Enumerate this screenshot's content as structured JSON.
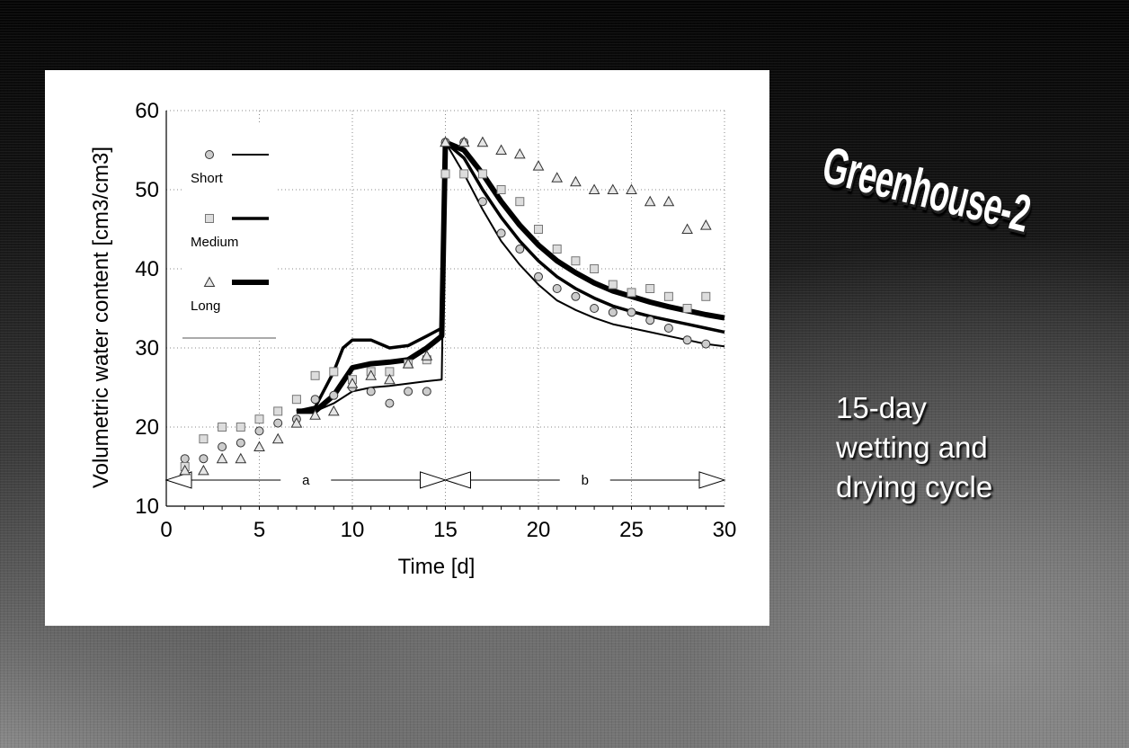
{
  "slide": {
    "title": "Greenhouse-2",
    "faded_text": "",
    "subtitle_lines": [
      "15-day",
      "wetting and",
      "drying cycle"
    ]
  },
  "chart_data": {
    "type": "scatter",
    "xlabel": "Time [d]",
    "ylabel": "Volumetric water content [cm3/cm3]",
    "xlim": [
      0,
      30
    ],
    "ylim": [
      10,
      60
    ],
    "xticks": [
      0,
      5,
      10,
      15,
      20,
      25,
      30
    ],
    "yticks": [
      10,
      20,
      30,
      40,
      50,
      60
    ],
    "grid": true,
    "legend_position": "top-left",
    "phase_labels": [
      {
        "label": "a",
        "from": 0,
        "to": 15
      },
      {
        "label": "b",
        "from": 15,
        "to": 30
      }
    ],
    "series": [
      {
        "name": "Short",
        "marker": "circle",
        "line_weight": "thin",
        "observed": [
          [
            1,
            16
          ],
          [
            2,
            16
          ],
          [
            3,
            17.5
          ],
          [
            4,
            18
          ],
          [
            5,
            19.5
          ],
          [
            6,
            20.5
          ],
          [
            7,
            21
          ],
          [
            8,
            23.5
          ],
          [
            9,
            24
          ],
          [
            10,
            25
          ],
          [
            11,
            24.5
          ],
          [
            12,
            23
          ],
          [
            13,
            24.5
          ],
          [
            14,
            24.5
          ],
          [
            15,
            56
          ],
          [
            16,
            56
          ],
          [
            17,
            48.5
          ],
          [
            18,
            44.5
          ],
          [
            19,
            42.5
          ],
          [
            20,
            39
          ],
          [
            21,
            37.5
          ],
          [
            22,
            36.5
          ],
          [
            23,
            35
          ],
          [
            24,
            34.5
          ],
          [
            25,
            34.5
          ],
          [
            26,
            33.5
          ],
          [
            27,
            32.5
          ],
          [
            28,
            31
          ],
          [
            29,
            30.5
          ]
        ],
        "modeled": [
          [
            7,
            22
          ],
          [
            8,
            22
          ],
          [
            9,
            23
          ],
          [
            10,
            24.5
          ],
          [
            11,
            25
          ],
          [
            12,
            25.2
          ],
          [
            13,
            25.5
          ],
          [
            14,
            25.8
          ],
          [
            14.8,
            26
          ],
          [
            15,
            56
          ],
          [
            16,
            52
          ],
          [
            17,
            47.5
          ],
          [
            18,
            43.5
          ],
          [
            19,
            40.5
          ],
          [
            20,
            38
          ],
          [
            21,
            36
          ],
          [
            22,
            34.8
          ],
          [
            23,
            33.8
          ],
          [
            24,
            33
          ],
          [
            25,
            32.5
          ],
          [
            26,
            32
          ],
          [
            27,
            31.5
          ],
          [
            28,
            31
          ],
          [
            29,
            30.5
          ],
          [
            30,
            30.2
          ]
        ]
      },
      {
        "name": "Medium",
        "marker": "square",
        "line_weight": "medium",
        "observed": [
          [
            1,
            15
          ],
          [
            2,
            18.5
          ],
          [
            3,
            20
          ],
          [
            4,
            20
          ],
          [
            5,
            21
          ],
          [
            6,
            22
          ],
          [
            7,
            23.5
          ],
          [
            8,
            26.5
          ],
          [
            9,
            27
          ],
          [
            10,
            26
          ],
          [
            11,
            27
          ],
          [
            12,
            27
          ],
          [
            13,
            28
          ],
          [
            14,
            28.5
          ],
          [
            15,
            52
          ],
          [
            16,
            52
          ],
          [
            17,
            52
          ],
          [
            18,
            50
          ],
          [
            19,
            48.5
          ],
          [
            20,
            45
          ],
          [
            21,
            42.5
          ],
          [
            22,
            41
          ],
          [
            23,
            40
          ],
          [
            24,
            38
          ],
          [
            25,
            37
          ],
          [
            26,
            37.5
          ],
          [
            27,
            36.5
          ],
          [
            28,
            35
          ],
          [
            29,
            36.5
          ]
        ],
        "modeled": [
          [
            7,
            22
          ],
          [
            8,
            22.5
          ],
          [
            9,
            27
          ],
          [
            9.5,
            30
          ],
          [
            10,
            31
          ],
          [
            11,
            31
          ],
          [
            12,
            30
          ],
          [
            13,
            30.3
          ],
          [
            14,
            31.5
          ],
          [
            14.8,
            32.5
          ],
          [
            15,
            56
          ],
          [
            16,
            54
          ],
          [
            17,
            50
          ],
          [
            18,
            46.5
          ],
          [
            19,
            43.5
          ],
          [
            20,
            41
          ],
          [
            21,
            39
          ],
          [
            22,
            37.5
          ],
          [
            23,
            36.3
          ],
          [
            24,
            35.3
          ],
          [
            25,
            34.6
          ],
          [
            26,
            34
          ],
          [
            27,
            33.5
          ],
          [
            28,
            33
          ],
          [
            29,
            32.5
          ],
          [
            30,
            32
          ]
        ]
      },
      {
        "name": "Long",
        "marker": "triangle",
        "line_weight": "thick",
        "observed": [
          [
            1,
            14.5
          ],
          [
            2,
            14.5
          ],
          [
            3,
            16
          ],
          [
            4,
            16
          ],
          [
            5,
            17.5
          ],
          [
            6,
            18.5
          ],
          [
            7,
            20.5
          ],
          [
            8,
            21.5
          ],
          [
            9,
            22
          ],
          [
            10,
            25.5
          ],
          [
            11,
            26.5
          ],
          [
            12,
            26
          ],
          [
            13,
            28
          ],
          [
            14,
            29
          ],
          [
            15,
            56
          ],
          [
            16,
            56
          ],
          [
            17,
            56
          ],
          [
            18,
            55
          ],
          [
            19,
            54.5
          ],
          [
            20,
            53
          ],
          [
            21,
            51.5
          ],
          [
            22,
            51
          ],
          [
            23,
            50
          ],
          [
            24,
            50
          ],
          [
            25,
            50
          ],
          [
            26,
            48.5
          ],
          [
            27,
            48.5
          ],
          [
            28,
            45
          ],
          [
            29,
            45.5
          ]
        ],
        "modeled": [
          [
            7,
            22
          ],
          [
            8,
            22
          ],
          [
            9,
            24
          ],
          [
            10,
            27.5
          ],
          [
            11,
            28
          ],
          [
            12,
            28.2
          ],
          [
            13,
            28.5
          ],
          [
            14,
            30
          ],
          [
            14.8,
            31.5
          ],
          [
            15,
            56
          ],
          [
            16,
            55
          ],
          [
            17,
            52
          ],
          [
            18,
            48.5
          ],
          [
            19,
            45.5
          ],
          [
            20,
            43
          ],
          [
            21,
            41
          ],
          [
            22,
            39.5
          ],
          [
            23,
            38.2
          ],
          [
            24,
            37.2
          ],
          [
            25,
            36.5
          ],
          [
            26,
            35.8
          ],
          [
            27,
            35.2
          ],
          [
            28,
            34.7
          ],
          [
            29,
            34.2
          ],
          [
            30,
            33.8
          ]
        ]
      }
    ]
  }
}
